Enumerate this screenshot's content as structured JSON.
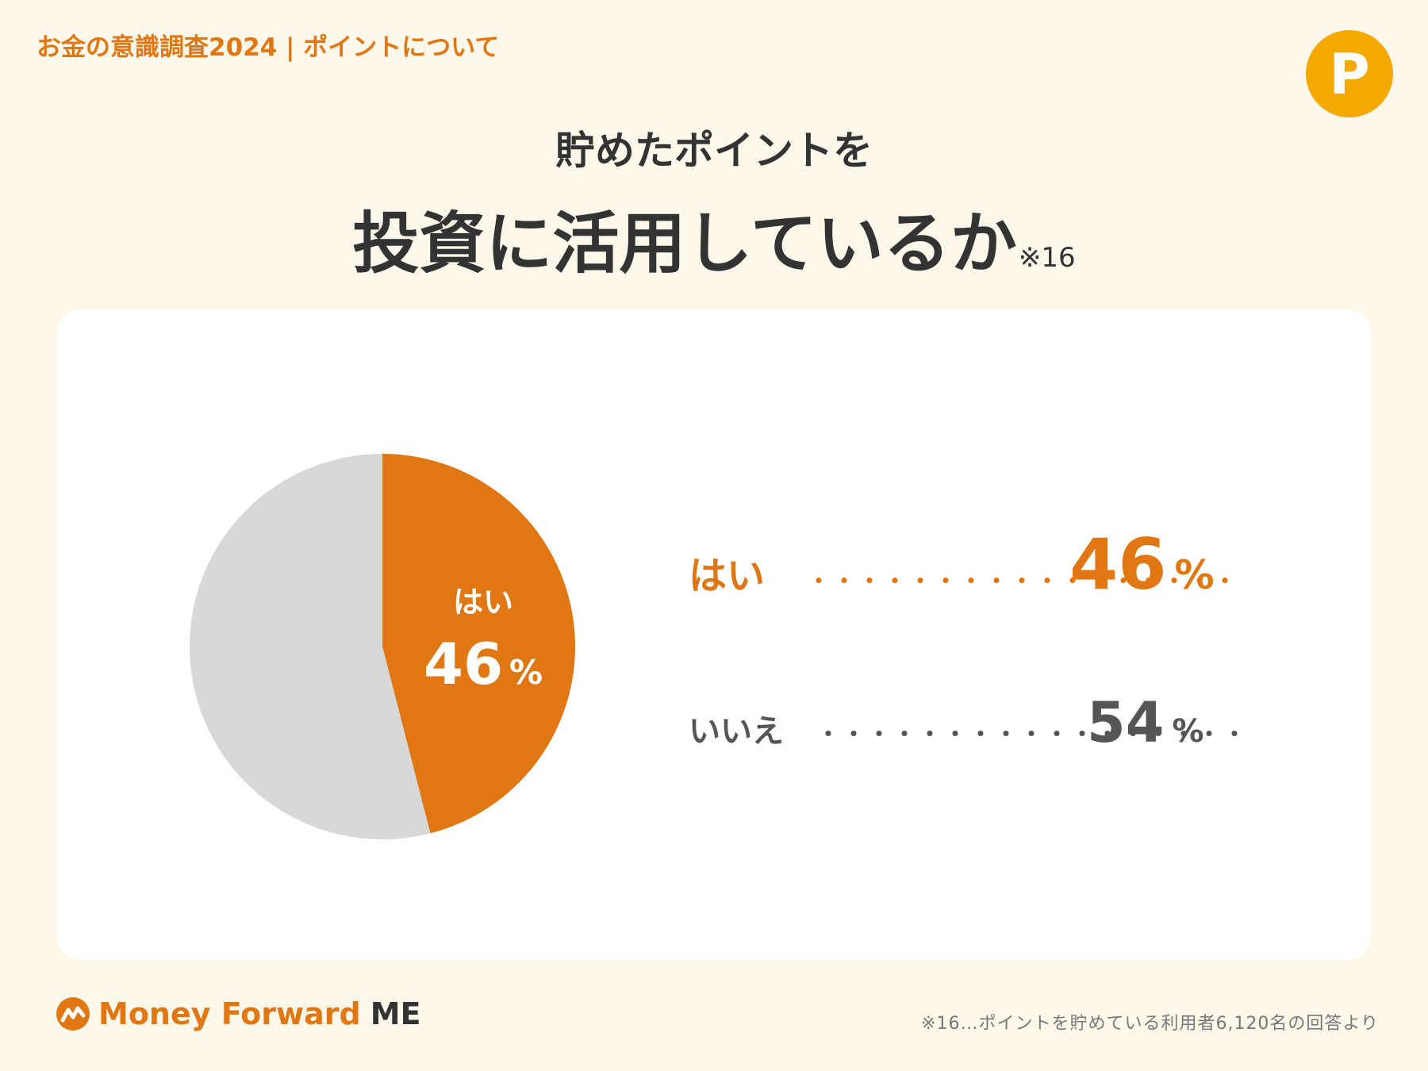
{
  "header": {
    "tag": "お金の意識調査2024 | ポイントについて",
    "badge": "P"
  },
  "title": {
    "line1": "貯めたポイントを",
    "line2": "投資に活用しているか",
    "note_ref": "※16"
  },
  "chart_data": {
    "type": "pie",
    "categories": [
      "はい",
      "いいえ"
    ],
    "values": [
      46,
      54
    ],
    "unit": "%",
    "colors": [
      "#e07712",
      "#d8d8d8"
    ],
    "inner_label": {
      "category": "はい",
      "value": "46",
      "unit": "%"
    }
  },
  "legend": [
    {
      "label": "はい",
      "value": "46",
      "unit": "%",
      "dots": "・・・・・・・・・・・・・・・・・"
    },
    {
      "label": "いいえ",
      "value": "54",
      "unit": "%",
      "dots": "・・・・・・・・・・・・・・・・・"
    }
  ],
  "footer": {
    "brand": "Money Forward",
    "brand_suffix": "ME",
    "footnote": "※16…ポイントを貯めている利用者6,120名の回答より"
  }
}
